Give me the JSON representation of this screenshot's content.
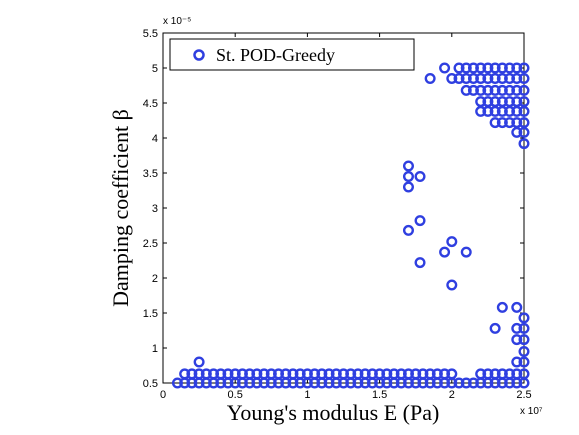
{
  "chart_data": {
    "type": "scatter",
    "xlabel": "Young's modulus E (Pa)",
    "ylabel": "Damping coefficient β",
    "x_multiplier": "x 10⁷",
    "y_multiplier": "x 10⁻⁵",
    "xlim": [
      0,
      2.5
    ],
    "ylim": [
      0.5,
      5.5
    ],
    "xticks": [
      "0",
      "0.5",
      "1",
      "1.5",
      "2",
      "2.5"
    ],
    "yticks": [
      "0.5",
      "1",
      "1.5",
      "2",
      "2.5",
      "3",
      "3.5",
      "4",
      "4.5",
      "5",
      "5.5"
    ],
    "legend": {
      "position": "top-left",
      "entries": [
        "St. POD-Greedy"
      ]
    },
    "marker_color": "#2f3fe0",
    "series": [
      {
        "name": "St. POD-Greedy",
        "points": [
          [
            0.1,
            0.5
          ],
          [
            0.15,
            0.5
          ],
          [
            0.2,
            0.5
          ],
          [
            0.25,
            0.5
          ],
          [
            0.3,
            0.5
          ],
          [
            0.35,
            0.5
          ],
          [
            0.4,
            0.5
          ],
          [
            0.45,
            0.5
          ],
          [
            0.5,
            0.5
          ],
          [
            0.55,
            0.5
          ],
          [
            0.6,
            0.5
          ],
          [
            0.65,
            0.5
          ],
          [
            0.7,
            0.5
          ],
          [
            0.75,
            0.5
          ],
          [
            0.8,
            0.5
          ],
          [
            0.85,
            0.5
          ],
          [
            0.9,
            0.5
          ],
          [
            0.95,
            0.5
          ],
          [
            1.0,
            0.5
          ],
          [
            1.05,
            0.5
          ],
          [
            1.1,
            0.5
          ],
          [
            1.15,
            0.5
          ],
          [
            1.2,
            0.5
          ],
          [
            1.25,
            0.5
          ],
          [
            1.3,
            0.5
          ],
          [
            1.35,
            0.5
          ],
          [
            1.4,
            0.5
          ],
          [
            1.45,
            0.5
          ],
          [
            1.5,
            0.5
          ],
          [
            1.55,
            0.5
          ],
          [
            1.6,
            0.5
          ],
          [
            1.65,
            0.5
          ],
          [
            1.7,
            0.5
          ],
          [
            1.75,
            0.5
          ],
          [
            1.8,
            0.5
          ],
          [
            1.85,
            0.5
          ],
          [
            1.9,
            0.5
          ],
          [
            1.95,
            0.5
          ],
          [
            2.0,
            0.5
          ],
          [
            2.05,
            0.5
          ],
          [
            2.1,
            0.5
          ],
          [
            2.15,
            0.5
          ],
          [
            2.2,
            0.5
          ],
          [
            2.25,
            0.5
          ],
          [
            2.3,
            0.5
          ],
          [
            2.35,
            0.5
          ],
          [
            2.4,
            0.5
          ],
          [
            2.45,
            0.5
          ],
          [
            2.5,
            0.5
          ],
          [
            0.15,
            0.63
          ],
          [
            0.2,
            0.63
          ],
          [
            0.25,
            0.63
          ],
          [
            0.3,
            0.63
          ],
          [
            0.35,
            0.63
          ],
          [
            0.4,
            0.63
          ],
          [
            0.45,
            0.63
          ],
          [
            0.5,
            0.63
          ],
          [
            0.55,
            0.63
          ],
          [
            0.6,
            0.63
          ],
          [
            0.65,
            0.63
          ],
          [
            0.7,
            0.63
          ],
          [
            0.75,
            0.63
          ],
          [
            0.8,
            0.63
          ],
          [
            0.85,
            0.63
          ],
          [
            0.9,
            0.63
          ],
          [
            0.95,
            0.63
          ],
          [
            1.0,
            0.63
          ],
          [
            1.05,
            0.63
          ],
          [
            1.1,
            0.63
          ],
          [
            1.15,
            0.63
          ],
          [
            1.2,
            0.63
          ],
          [
            1.25,
            0.63
          ],
          [
            1.3,
            0.63
          ],
          [
            1.35,
            0.63
          ],
          [
            1.4,
            0.63
          ],
          [
            1.45,
            0.63
          ],
          [
            1.5,
            0.63
          ],
          [
            1.55,
            0.63
          ],
          [
            1.6,
            0.63
          ],
          [
            1.65,
            0.63
          ],
          [
            1.7,
            0.63
          ],
          [
            1.75,
            0.63
          ],
          [
            1.8,
            0.63
          ],
          [
            1.85,
            0.63
          ],
          [
            1.9,
            0.63
          ],
          [
            1.95,
            0.63
          ],
          [
            2.0,
            0.63
          ],
          [
            2.2,
            0.63
          ],
          [
            2.25,
            0.63
          ],
          [
            2.3,
            0.63
          ],
          [
            2.35,
            0.63
          ],
          [
            2.4,
            0.63
          ],
          [
            2.45,
            0.63
          ],
          [
            2.5,
            0.63
          ],
          [
            0.25,
            0.8
          ],
          [
            2.45,
            0.8
          ],
          [
            2.5,
            0.8
          ],
          [
            2.5,
            0.95
          ],
          [
            2.45,
            1.12
          ],
          [
            2.5,
            1.12
          ],
          [
            2.3,
            1.28
          ],
          [
            2.45,
            1.28
          ],
          [
            2.5,
            1.28
          ],
          [
            2.5,
            1.43
          ],
          [
            2.35,
            1.58
          ],
          [
            2.45,
            1.58
          ],
          [
            1.7,
            3.6
          ],
          [
            1.7,
            3.45
          ],
          [
            1.78,
            3.45
          ],
          [
            1.7,
            3.3
          ],
          [
            1.78,
            2.82
          ],
          [
            1.7,
            2.68
          ],
          [
            2.0,
            2.52
          ],
          [
            1.95,
            2.37
          ],
          [
            2.1,
            2.37
          ],
          [
            1.78,
            2.22
          ],
          [
            2.0,
            1.9
          ],
          [
            1.85,
            4.85
          ],
          [
            1.95,
            5.0
          ],
          [
            2.05,
            5.0
          ],
          [
            2.1,
            5.0
          ],
          [
            2.15,
            5.0
          ],
          [
            2.2,
            5.0
          ],
          [
            2.25,
            5.0
          ],
          [
            2.3,
            5.0
          ],
          [
            2.35,
            5.0
          ],
          [
            2.4,
            5.0
          ],
          [
            2.45,
            5.0
          ],
          [
            2.5,
            5.0
          ],
          [
            2.0,
            4.85
          ],
          [
            2.05,
            4.85
          ],
          [
            2.1,
            4.85
          ],
          [
            2.15,
            4.85
          ],
          [
            2.2,
            4.85
          ],
          [
            2.25,
            4.85
          ],
          [
            2.3,
            4.85
          ],
          [
            2.35,
            4.85
          ],
          [
            2.4,
            4.85
          ],
          [
            2.45,
            4.85
          ],
          [
            2.5,
            4.85
          ],
          [
            2.1,
            4.68
          ],
          [
            2.15,
            4.68
          ],
          [
            2.2,
            4.68
          ],
          [
            2.25,
            4.68
          ],
          [
            2.3,
            4.68
          ],
          [
            2.35,
            4.68
          ],
          [
            2.4,
            4.68
          ],
          [
            2.45,
            4.68
          ],
          [
            2.5,
            4.68
          ],
          [
            2.2,
            4.52
          ],
          [
            2.25,
            4.52
          ],
          [
            2.3,
            4.52
          ],
          [
            2.35,
            4.52
          ],
          [
            2.4,
            4.52
          ],
          [
            2.45,
            4.52
          ],
          [
            2.5,
            4.52
          ],
          [
            2.2,
            4.38
          ],
          [
            2.25,
            4.38
          ],
          [
            2.3,
            4.38
          ],
          [
            2.35,
            4.38
          ],
          [
            2.4,
            4.38
          ],
          [
            2.45,
            4.38
          ],
          [
            2.5,
            4.38
          ],
          [
            2.3,
            4.22
          ],
          [
            2.35,
            4.22
          ],
          [
            2.4,
            4.22
          ],
          [
            2.45,
            4.22
          ],
          [
            2.5,
            4.22
          ],
          [
            2.45,
            4.08
          ],
          [
            2.5,
            4.08
          ],
          [
            2.5,
            3.92
          ]
        ]
      }
    ]
  }
}
